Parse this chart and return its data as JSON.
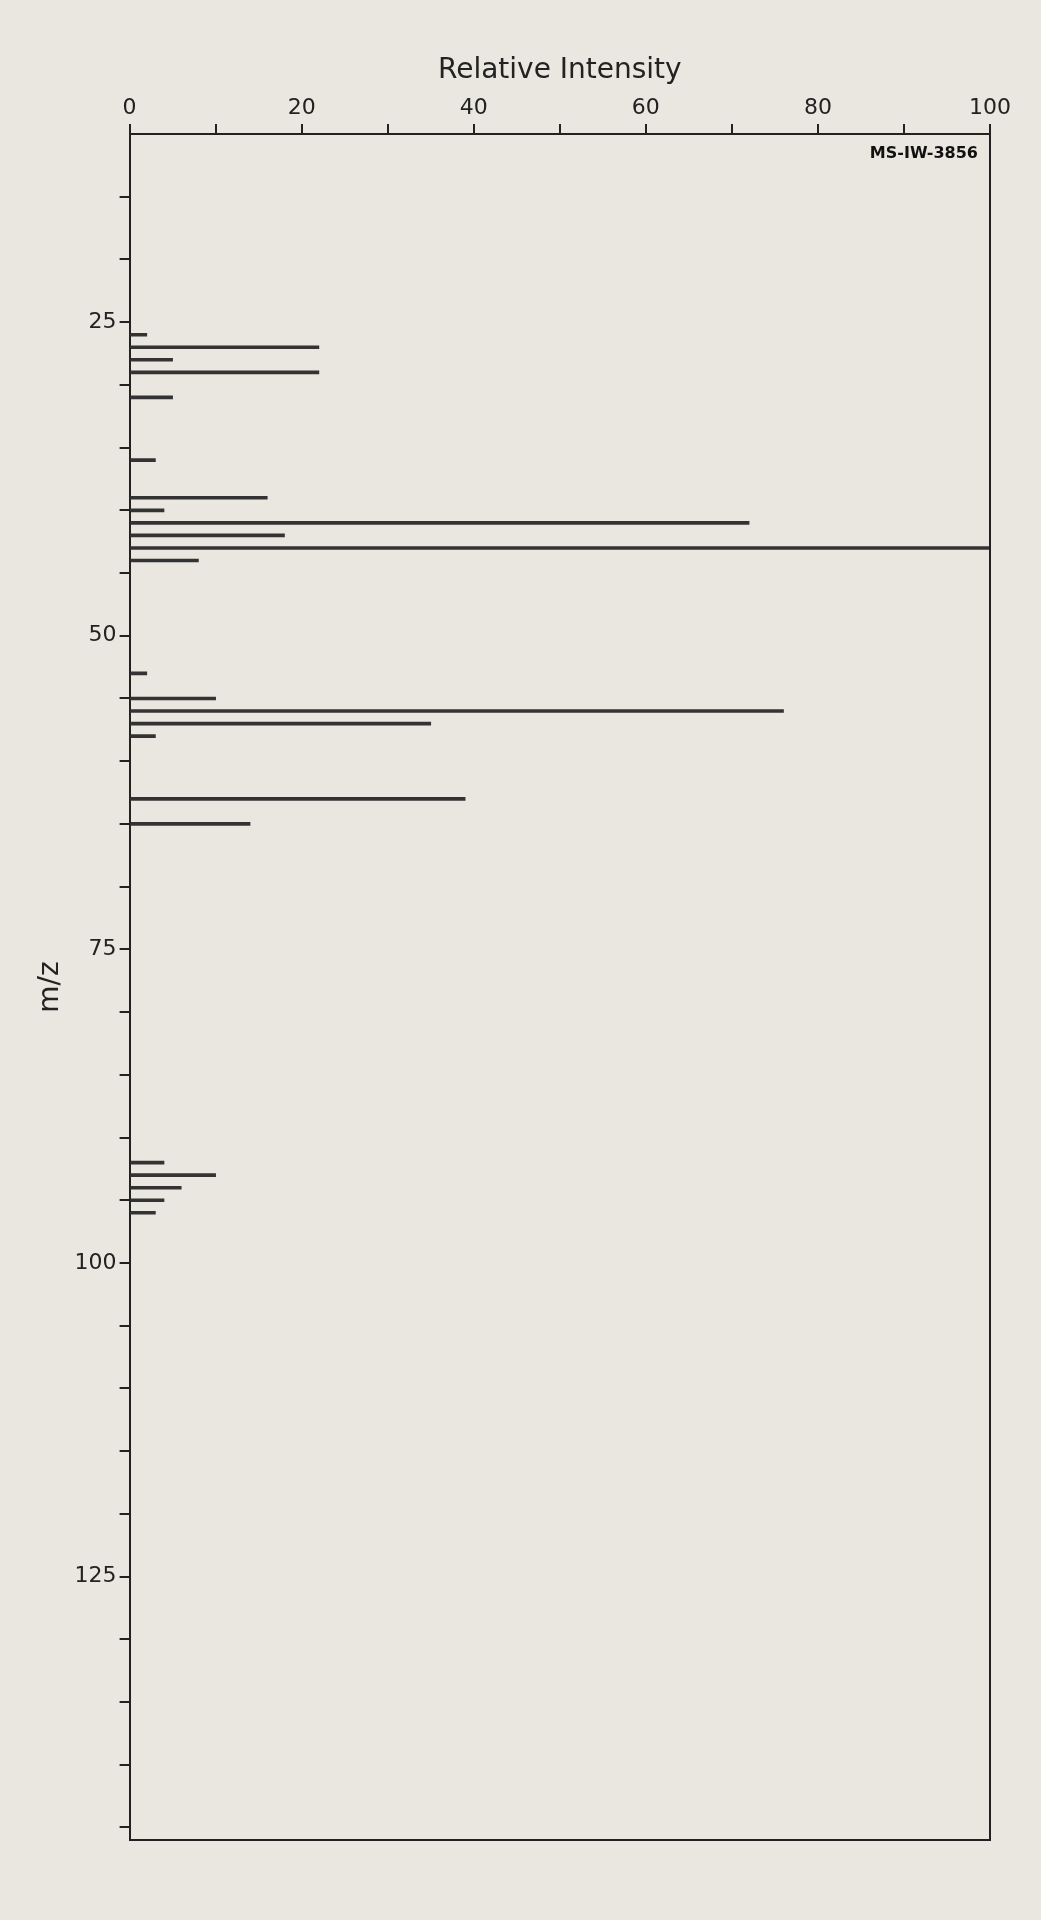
{
  "chart_data": {
    "type": "bar",
    "orientation": "horizontal",
    "xlabel": "Relative Intensity",
    "ylabel": "m/z",
    "annotations": [
      "MS-IW-3856"
    ],
    "x": [
      26,
      27,
      28,
      29,
      31,
      36,
      39,
      40,
      41,
      42,
      43,
      44,
      53,
      55,
      56,
      57,
      58,
      63,
      65,
      92,
      93,
      94,
      95,
      96
    ],
    "values": [
      2,
      22,
      5,
      22,
      5,
      3,
      16,
      4,
      72,
      18,
      100,
      8,
      2,
      10,
      76,
      35,
      3,
      39,
      14,
      4,
      10,
      6,
      4,
      3
    ],
    "color": "#333333",
    "grid": false,
    "legend": false,
    "xlim": [
      0,
      100
    ],
    "xticks": [
      0,
      {
        "value": 10,
        "label": null
      },
      20,
      {
        "value": 30,
        "label": null
      },
      40,
      {
        "value": 50,
        "label": null
      },
      60,
      {
        "value": 70,
        "label": null
      },
      80,
      {
        "value": 90,
        "label": null
      },
      100
    ],
    "ylim": [
      146,
      10
    ],
    "yticks": [
      {
        "value": 15,
        "label": null
      },
      {
        "value": 20,
        "label": null
      },
      25,
      {
        "value": 30,
        "label": null
      },
      {
        "value": 35,
        "label": null
      },
      {
        "value": 40,
        "label": null
      },
      {
        "value": 45,
        "label": null
      },
      50,
      {
        "value": 55,
        "label": null
      },
      {
        "value": 60,
        "label": null
      },
      {
        "value": 65,
        "label": null
      },
      {
        "value": 70,
        "label": null
      },
      75,
      {
        "value": 80,
        "label": null
      },
      {
        "value": 85,
        "label": null
      },
      {
        "value": 90,
        "label": null
      },
      {
        "value": 95,
        "label": null
      },
      100,
      {
        "value": 105,
        "label": null
      },
      {
        "value": 110,
        "label": null
      },
      {
        "value": 115,
        "label": null
      },
      {
        "value": 120,
        "label": null
      },
      125,
      {
        "value": 130,
        "label": null
      },
      {
        "value": 135,
        "label": null
      },
      {
        "value": 140,
        "label": null
      },
      {
        "value": 145,
        "label": null
      }
    ]
  }
}
